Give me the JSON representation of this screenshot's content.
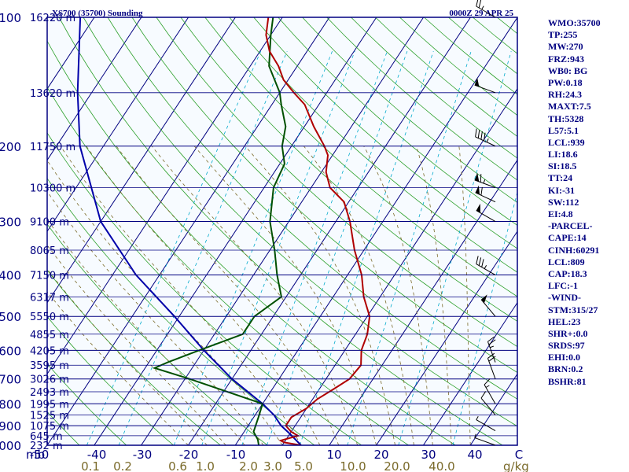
{
  "header": {
    "title": "XS700 (35700) Sounding",
    "time": "0000Z 29 APR 25"
  },
  "colors": {
    "frame": "#000080",
    "isobar": "#000080",
    "isotherm": "#000080",
    "dry_adiabat": "#2ca02c",
    "moist_adiabat": "#7a6a2a",
    "mixing_ratio": "#00aacc",
    "temperature": "#b00000",
    "dewpoint": "#005000",
    "parcel": "#0000aa",
    "wind": "#000000",
    "background": "#f7fbff"
  },
  "chart_data": {
    "type": "skew-t log-p sounding",
    "title": "XS700 (35700) Sounding",
    "time": "0000Z 29 APR 25",
    "xlabel": "",
    "x_unit_label": "mb",
    "mixing_ratio_unit": "g/kg",
    "temperature_range": [
      -50,
      50
    ],
    "pressure_range": [
      1000,
      100
    ],
    "y_ticks": [
      100,
      200,
      300,
      400,
      500,
      600,
      700,
      800,
      900,
      1000
    ],
    "x_ticks": [
      "-50",
      "-40",
      "-30",
      "-20",
      "-10",
      "0",
      "10",
      "20",
      "30",
      "40",
      "C"
    ],
    "mixing_ratio_labels": [
      "0.1",
      "0.2",
      "0.6",
      "1.0",
      "2.0",
      "3.0",
      "5.0",
      "10.0",
      "20.0",
      "40.0"
    ],
    "height_labels": [
      {
        "p": 100,
        "label": "16220 m"
      },
      {
        "p": 150,
        "label": "13620 m"
      },
      {
        "p": 200,
        "label": "11750 m"
      },
      {
        "p": 250,
        "label": "10300 m"
      },
      {
        "p": 300,
        "label": "9100 m"
      },
      {
        "p": 350,
        "label": "8065 m"
      },
      {
        "p": 400,
        "label": "7150 m"
      },
      {
        "p": 450,
        "label": "6317 m"
      },
      {
        "p": 500,
        "label": "5550 m"
      },
      {
        "p": 550,
        "label": "4855 m"
      },
      {
        "p": 600,
        "label": "4205 m"
      },
      {
        "p": 650,
        "label": "3595 m"
      },
      {
        "p": 700,
        "label": "3026 m"
      },
      {
        "p": 750,
        "label": "2493 m"
      },
      {
        "p": 800,
        "label": "1995 m"
      },
      {
        "p": 850,
        "label": "1525 m"
      },
      {
        "p": 900,
        "label": "1075 m"
      },
      {
        "p": 950,
        "label": "645 m"
      },
      {
        "p": 1000,
        "label": "232 m"
      }
    ],
    "temperature_profile": [
      [
        1000,
        4
      ],
      [
        985,
        0
      ],
      [
        975,
        -1
      ],
      [
        950,
        2
      ],
      [
        930,
        0
      ],
      [
        900,
        -2
      ],
      [
        860,
        -2
      ],
      [
        820,
        0
      ],
      [
        780,
        1
      ],
      [
        740,
        3
      ],
      [
        700,
        5
      ],
      [
        650,
        5.5
      ],
      [
        600,
        3.5
      ],
      [
        550,
        2.5
      ],
      [
        500,
        0.5
      ],
      [
        450,
        -3.5
      ],
      [
        400,
        -7
      ],
      [
        350,
        -12
      ],
      [
        300,
        -17
      ],
      [
        270,
        -21
      ],
      [
        250,
        -26
      ],
      [
        230,
        -29
      ],
      [
        210,
        -31
      ],
      [
        200,
        -33
      ],
      [
        180,
        -38
      ],
      [
        160,
        -43
      ],
      [
        150,
        -47
      ],
      [
        140,
        -51
      ],
      [
        130,
        -54
      ],
      [
        120,
        -58
      ],
      [
        110,
        -61
      ],
      [
        100,
        -63
      ]
    ],
    "dewpoint_profile": [
      [
        1000,
        -5
      ],
      [
        970,
        -6
      ],
      [
        930,
        -8
      ],
      [
        860,
        -9
      ],
      [
        800,
        -10
      ],
      [
        700,
        -29
      ],
      [
        660,
        -38
      ],
      [
        640,
        -36
      ],
      [
        600,
        -31
      ],
      [
        550,
        -24
      ],
      [
        500,
        -24
      ],
      [
        450,
        -21
      ],
      [
        400,
        -25
      ],
      [
        350,
        -29
      ],
      [
        300,
        -34
      ],
      [
        250,
        -38
      ],
      [
        220,
        -39
      ],
      [
        200,
        -42
      ],
      [
        180,
        -44
      ],
      [
        160,
        -48
      ],
      [
        150,
        -50
      ],
      [
        130,
        -56
      ],
      [
        110,
        -60
      ],
      [
        100,
        -62
      ]
    ],
    "parcel_profile": [
      [
        1000,
        4
      ],
      [
        940,
        0
      ],
      [
        900,
        -3
      ],
      [
        850,
        -6
      ],
      [
        800,
        -10
      ],
      [
        700,
        -20
      ],
      [
        600,
        -30
      ],
      [
        500,
        -41
      ],
      [
        400,
        -55
      ],
      [
        300,
        -70
      ],
      [
        200,
        -85
      ],
      [
        150,
        -93
      ],
      [
        100,
        -103
      ]
    ],
    "wind_barbs": [
      {
        "p": 100,
        "dir": 300,
        "spd": 25
      },
      {
        "p": 150,
        "dir": 290,
        "spd": 50
      },
      {
        "p": 200,
        "dir": 295,
        "spd": 45
      },
      {
        "p": 250,
        "dir": 290,
        "spd": 65
      },
      {
        "p": 270,
        "dir": 295,
        "spd": 60
      },
      {
        "p": 300,
        "dir": 300,
        "spd": 50
      },
      {
        "p": 400,
        "dir": 300,
        "spd": 35
      },
      {
        "p": 500,
        "dir": 320,
        "spd": 50
      },
      {
        "p": 640,
        "dir": 340,
        "spd": 25
      },
      {
        "p": 700,
        "dir": 340,
        "spd": 20
      },
      {
        "p": 800,
        "dir": 330,
        "spd": 15
      },
      {
        "p": 850,
        "dir": 320,
        "spd": 10
      },
      {
        "p": 925,
        "dir": 300,
        "spd": 5
      },
      {
        "p": 1000,
        "dir": 290,
        "spd": 5
      }
    ]
  },
  "indices": [
    "WMO:35700",
    "TP:255",
    "MW:270",
    "FRZ:943",
    "WB0: BG",
    "PW:0.18",
    "RH:24.3",
    "MAXT:7.5",
    "TH:5328",
    "L57:5.1",
    "LCL:939",
    "LI:18.6",
    "SI:18.5",
    "TT:24",
    "KI:-31",
    "SW:112",
    "EI:4.8",
    "-PARCEL-",
    "CAPE:14",
    "CINH:60291",
    "LCL:809",
    "CAP:18.3",
    "LFC:-1",
    "-WIND-",
    "STM:315/27",
    "HEL:23",
    "SHR+:0.0",
    "SRDS:97",
    "EHI:0.0",
    "BRN:0.2",
    "BSHR:81"
  ]
}
